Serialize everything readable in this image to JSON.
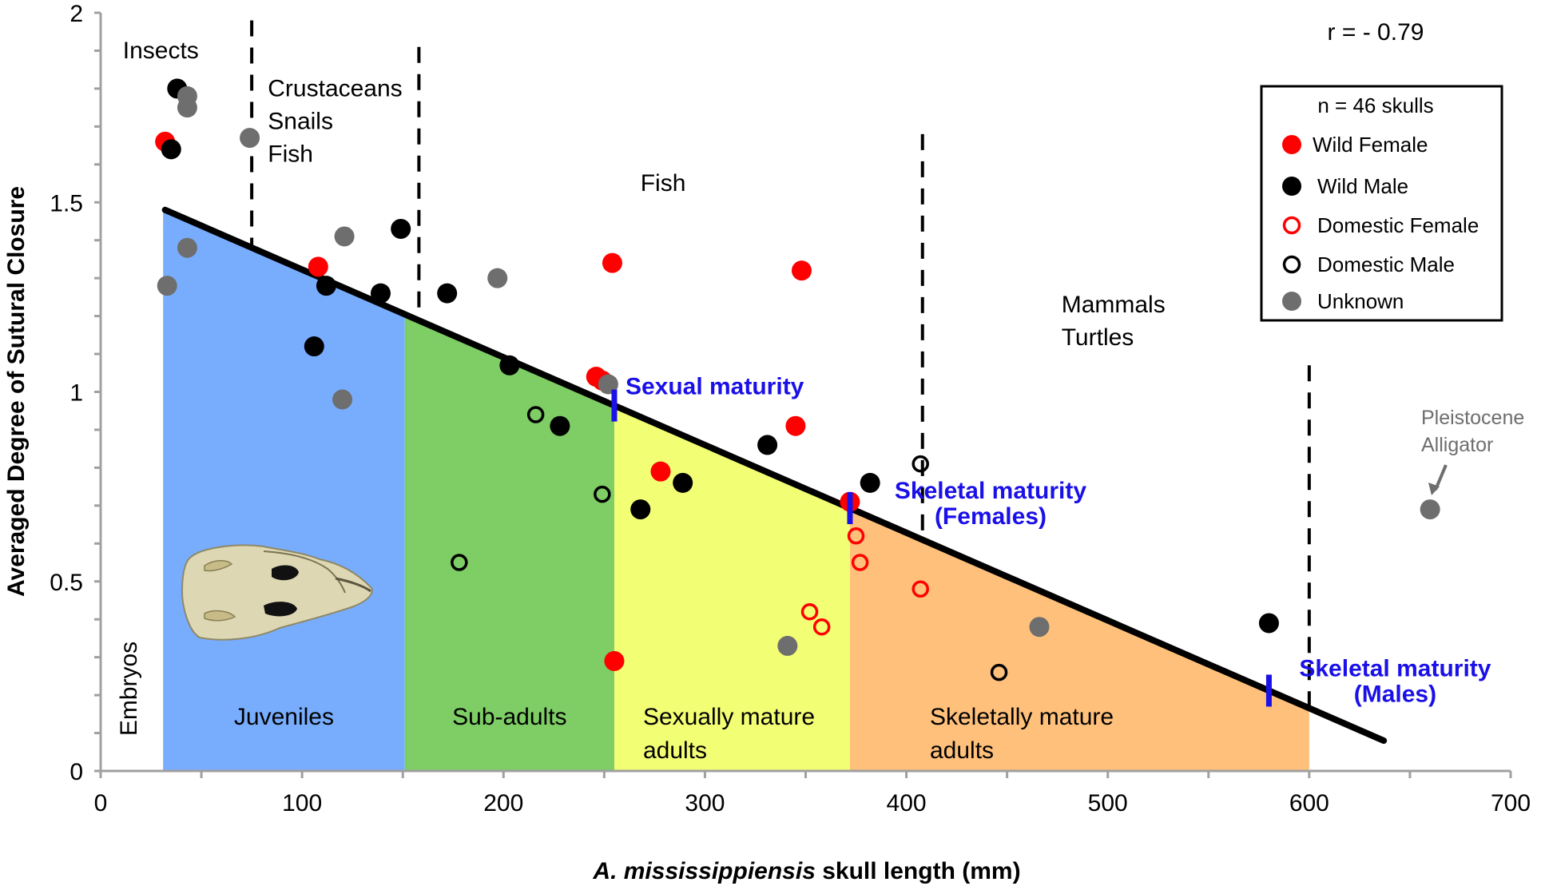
{
  "chart_data": {
    "type": "scatter",
    "title": "",
    "xlabel_italic": "A. mississippiensis",
    "xlabel_rest": " skull length (mm)",
    "ylabel": "Averaged Degree of Sutural Closure",
    "xlim": [
      0,
      700
    ],
    "ylim": [
      0,
      2
    ],
    "x_ticks": [
      0,
      100,
      200,
      300,
      400,
      500,
      600,
      700
    ],
    "x_tick_labels": [
      "0",
      "100",
      "200",
      "300",
      "400",
      "500",
      "600",
      "700"
    ],
    "x_minor_step": 50,
    "y_ticks": [
      0,
      0.5,
      1,
      1.5,
      2
    ],
    "y_tick_labels": [
      "0",
      "0.5",
      "1",
      "1.5",
      "2"
    ],
    "y_minor_step": 0.1,
    "grid": false,
    "correlation_label": "r = - 0.79",
    "legend": {
      "placement": "top-right",
      "title": "n = 46 skulls",
      "entries": [
        {
          "key": "wild_female",
          "label": "Wild Female",
          "fill": "#ff0000",
          "stroke": "none"
        },
        {
          "key": "wild_male",
          "label": "Wild Male",
          "fill": "#000000",
          "stroke": "none"
        },
        {
          "key": "domestic_female",
          "label": "Domestic Female",
          "fill": "none",
          "stroke": "#ff0000"
        },
        {
          "key": "domestic_male",
          "label": "Domestic Male",
          "fill": "none",
          "stroke": "#000000"
        },
        {
          "key": "unknown",
          "label": "Unknown",
          "fill": "#6e6e6e",
          "stroke": "none"
        }
      ]
    },
    "series": [
      {
        "name": "Wild Female",
        "key": "wild_female",
        "points": [
          [
            32,
            1.66
          ],
          [
            108,
            1.33
          ],
          [
            246,
            1.04
          ],
          [
            249,
            1.03
          ],
          [
            254,
            1.34
          ],
          [
            278,
            0.79
          ],
          [
            345,
            0.91
          ],
          [
            348,
            1.32
          ],
          [
            372,
            0.71
          ],
          [
            255,
            0.29
          ]
        ]
      },
      {
        "name": "Wild Male",
        "key": "wild_male",
        "points": [
          [
            38,
            1.8
          ],
          [
            35,
            1.64
          ],
          [
            106,
            1.12
          ],
          [
            112,
            1.28
          ],
          [
            139,
            1.26
          ],
          [
            149,
            1.43
          ],
          [
            172,
            1.26
          ],
          [
            203,
            1.07
          ],
          [
            228,
            0.91
          ],
          [
            268,
            0.69
          ],
          [
            289,
            0.76
          ],
          [
            331,
            0.86
          ],
          [
            382,
            0.76
          ],
          [
            580,
            0.39
          ]
        ]
      },
      {
        "name": "Domestic Female",
        "key": "domestic_female",
        "points": [
          [
            375,
            0.62
          ],
          [
            377,
            0.55
          ],
          [
            407,
            0.48
          ],
          [
            352,
            0.42
          ],
          [
            358,
            0.38
          ]
        ]
      },
      {
        "name": "Domestic Male",
        "key": "domestic_male",
        "points": [
          [
            216,
            0.94
          ],
          [
            178,
            0.55
          ],
          [
            249,
            0.73
          ],
          [
            407,
            0.81
          ],
          [
            446,
            0.26
          ]
        ]
      },
      {
        "name": "Unknown",
        "key": "unknown",
        "points": [
          [
            43,
            1.78
          ],
          [
            43,
            1.75
          ],
          [
            74,
            1.67
          ],
          [
            33,
            1.28
          ],
          [
            43,
            1.38
          ],
          [
            121,
            1.41
          ],
          [
            120,
            0.98
          ],
          [
            197,
            1.3
          ],
          [
            252,
            1.02
          ],
          [
            341,
            0.33
          ],
          [
            466,
            0.38
          ],
          [
            660,
            0.69
          ]
        ]
      }
    ],
    "trendline": {
      "from": [
        32,
        1.48
      ],
      "to": [
        637,
        0.08
      ],
      "color": "#000000"
    },
    "stage_bands": [
      {
        "label_lines": [
          "Juveniles"
        ],
        "x0": 31,
        "x1": 151,
        "color": "#78adfe"
      },
      {
        "label_lines": [
          "Sub-adults"
        ],
        "x0": 151,
        "x1": 255,
        "color": "#7ecd65"
      },
      {
        "label_lines": [
          "Sexually mature",
          "adults"
        ],
        "x0": 255,
        "x1": 372,
        "color": "#f2fe74"
      },
      {
        "label_lines": [
          "Skeletally mature",
          "adults"
        ],
        "x0": 372,
        "x1": 600,
        "color": "#ffc07b"
      }
    ],
    "embryos_label": "Embryos",
    "diet_dividers": [
      75,
      158,
      408,
      600
    ],
    "diet_labels": [
      {
        "lines": [
          "Insects"
        ],
        "x": 11,
        "y": 1.88
      },
      {
        "lines": [
          "Crustaceans",
          "Snails",
          "Fish"
        ],
        "x": 83,
        "y": 1.78
      },
      {
        "lines": [
          "Fish"
        ],
        "x": 268,
        "y": 1.53
      },
      {
        "lines": [
          "Mammals",
          "Turtles"
        ],
        "x": 477,
        "y": 1.21
      }
    ],
    "maturity_markers": [
      {
        "x": 255,
        "lines": [
          "Sexual maturity"
        ]
      },
      {
        "x": 372,
        "lines": [
          "Skeletal maturity",
          "(Females)"
        ]
      },
      {
        "x": 580,
        "lines": [
          "Skeletal maturity",
          "(Males)"
        ]
      }
    ],
    "callout": {
      "lines": [
        "Pleistocene",
        "Alligator"
      ],
      "target": [
        660,
        0.69
      ]
    },
    "inset_image": "alligator-skull-photo"
  }
}
